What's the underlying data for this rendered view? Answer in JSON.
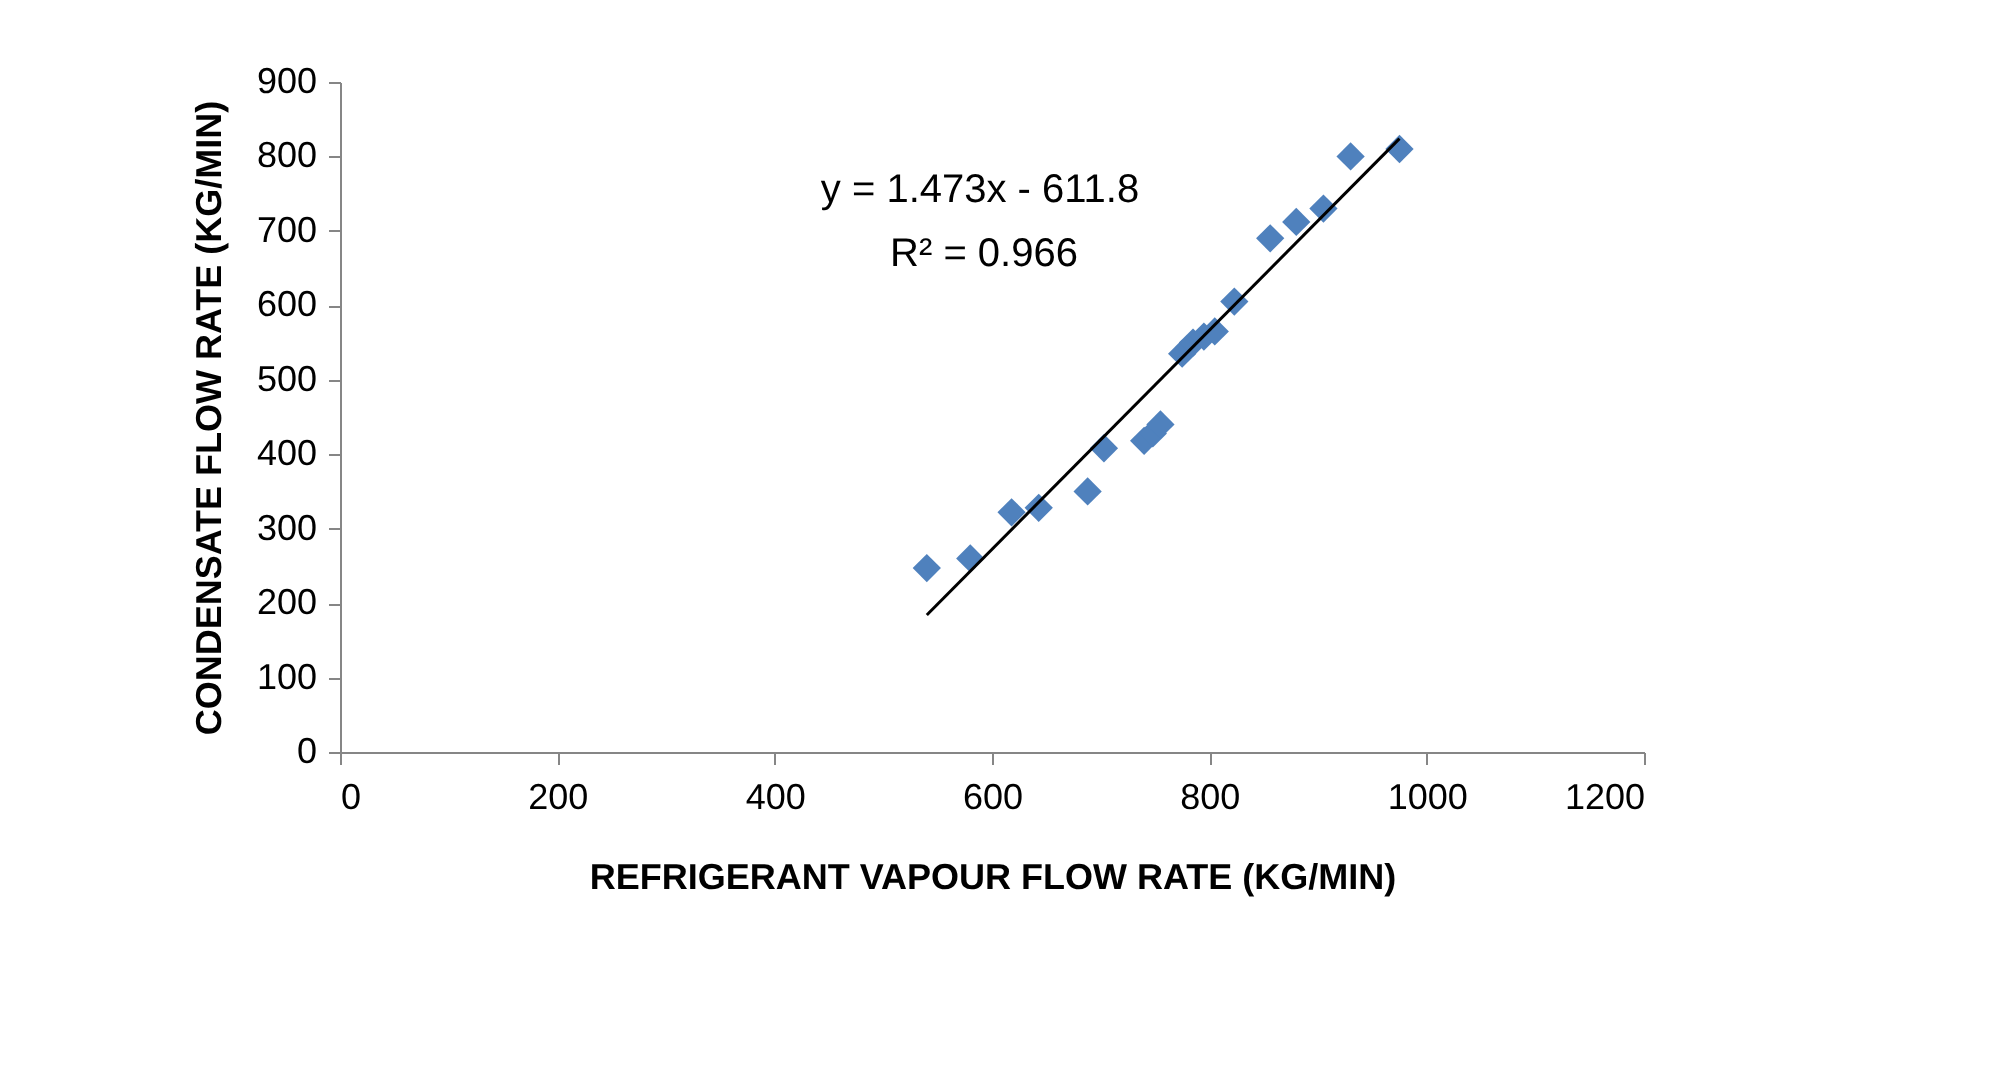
{
  "chart_data": {
    "type": "scatter",
    "xlabel": "REFRIGERANT VAPOUR FLOW RATE (KG/MIN)",
    "ylabel": "CONDENSATE FLOW RATE (KG/MIN)",
    "xlim": [
      0,
      1200
    ],
    "xticks": [
      0,
      200,
      400,
      600,
      800,
      1000,
      1200
    ],
    "ylim": [
      0,
      900
    ],
    "yticks": [
      0,
      100,
      200,
      300,
      400,
      500,
      600,
      700,
      800,
      900
    ],
    "grid": false,
    "marker": "diamond",
    "series": [
      {
        "color": "#4f81bd",
        "x": [
          540,
          580,
          618,
          643,
          688,
          703,
          740,
          748,
          755,
          775,
          785,
          795,
          805,
          823,
          856,
          880,
          905,
          930,
          975
        ],
        "values": [
          247,
          260,
          322,
          328,
          350,
          408,
          418,
          428,
          440,
          535,
          550,
          558,
          565,
          605,
          690,
          712,
          730,
          800,
          810
        ]
      },
      {
        "type": "line",
        "color": "#000000",
        "marker": "none",
        "x": [
          540,
          975
        ],
        "values": [
          184,
          824
        ]
      }
    ],
    "annotations": [
      "y = 1.473x - 611.8",
      "R² = 0.966"
    ]
  }
}
